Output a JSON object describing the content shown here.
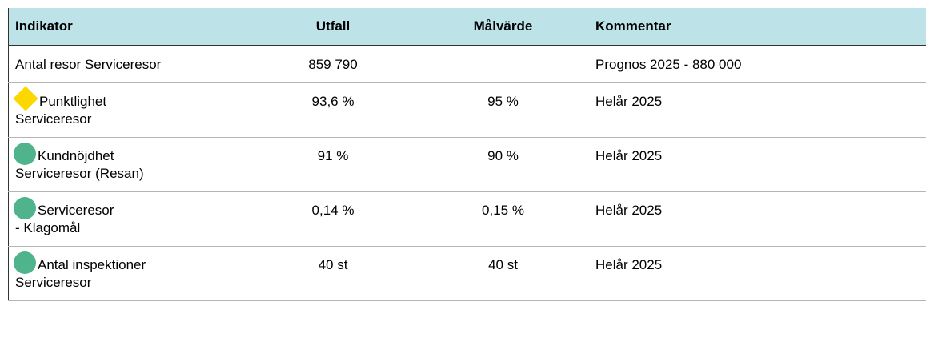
{
  "table": {
    "header": [
      "Indikator",
      "Utfall",
      "Målvärde",
      "Kommentar"
    ],
    "rows": [
      {
        "status": null,
        "indicator": [
          "Antal resor Serviceresor"
        ],
        "outcome": "859 790",
        "target": "",
        "comment": "Prognos 2025 - 880 000"
      },
      {
        "status": "yellow",
        "indicator": [
          "Punktlighet",
          "Serviceresor"
        ],
        "outcome": "93,6 %",
        "target": "95 %",
        "comment": "Helår 2025"
      },
      {
        "status": "green",
        "indicator": [
          "Kundnöjdhet",
          "Serviceresor (Resan)"
        ],
        "outcome": "91 %",
        "target": "90 %",
        "comment": "Helår 2025"
      },
      {
        "status": "green",
        "indicator": [
          "Serviceresor",
          "- Klagomål"
        ],
        "outcome": "0,14 %",
        "target": "0,15 %",
        "comment": "Helår 2025"
      },
      {
        "status": "green",
        "indicator": [
          "Antal inspektioner",
          "Serviceresor"
        ],
        "outcome": "40 st",
        "target": "40 st",
        "comment": "Helår 2025"
      }
    ]
  }
}
